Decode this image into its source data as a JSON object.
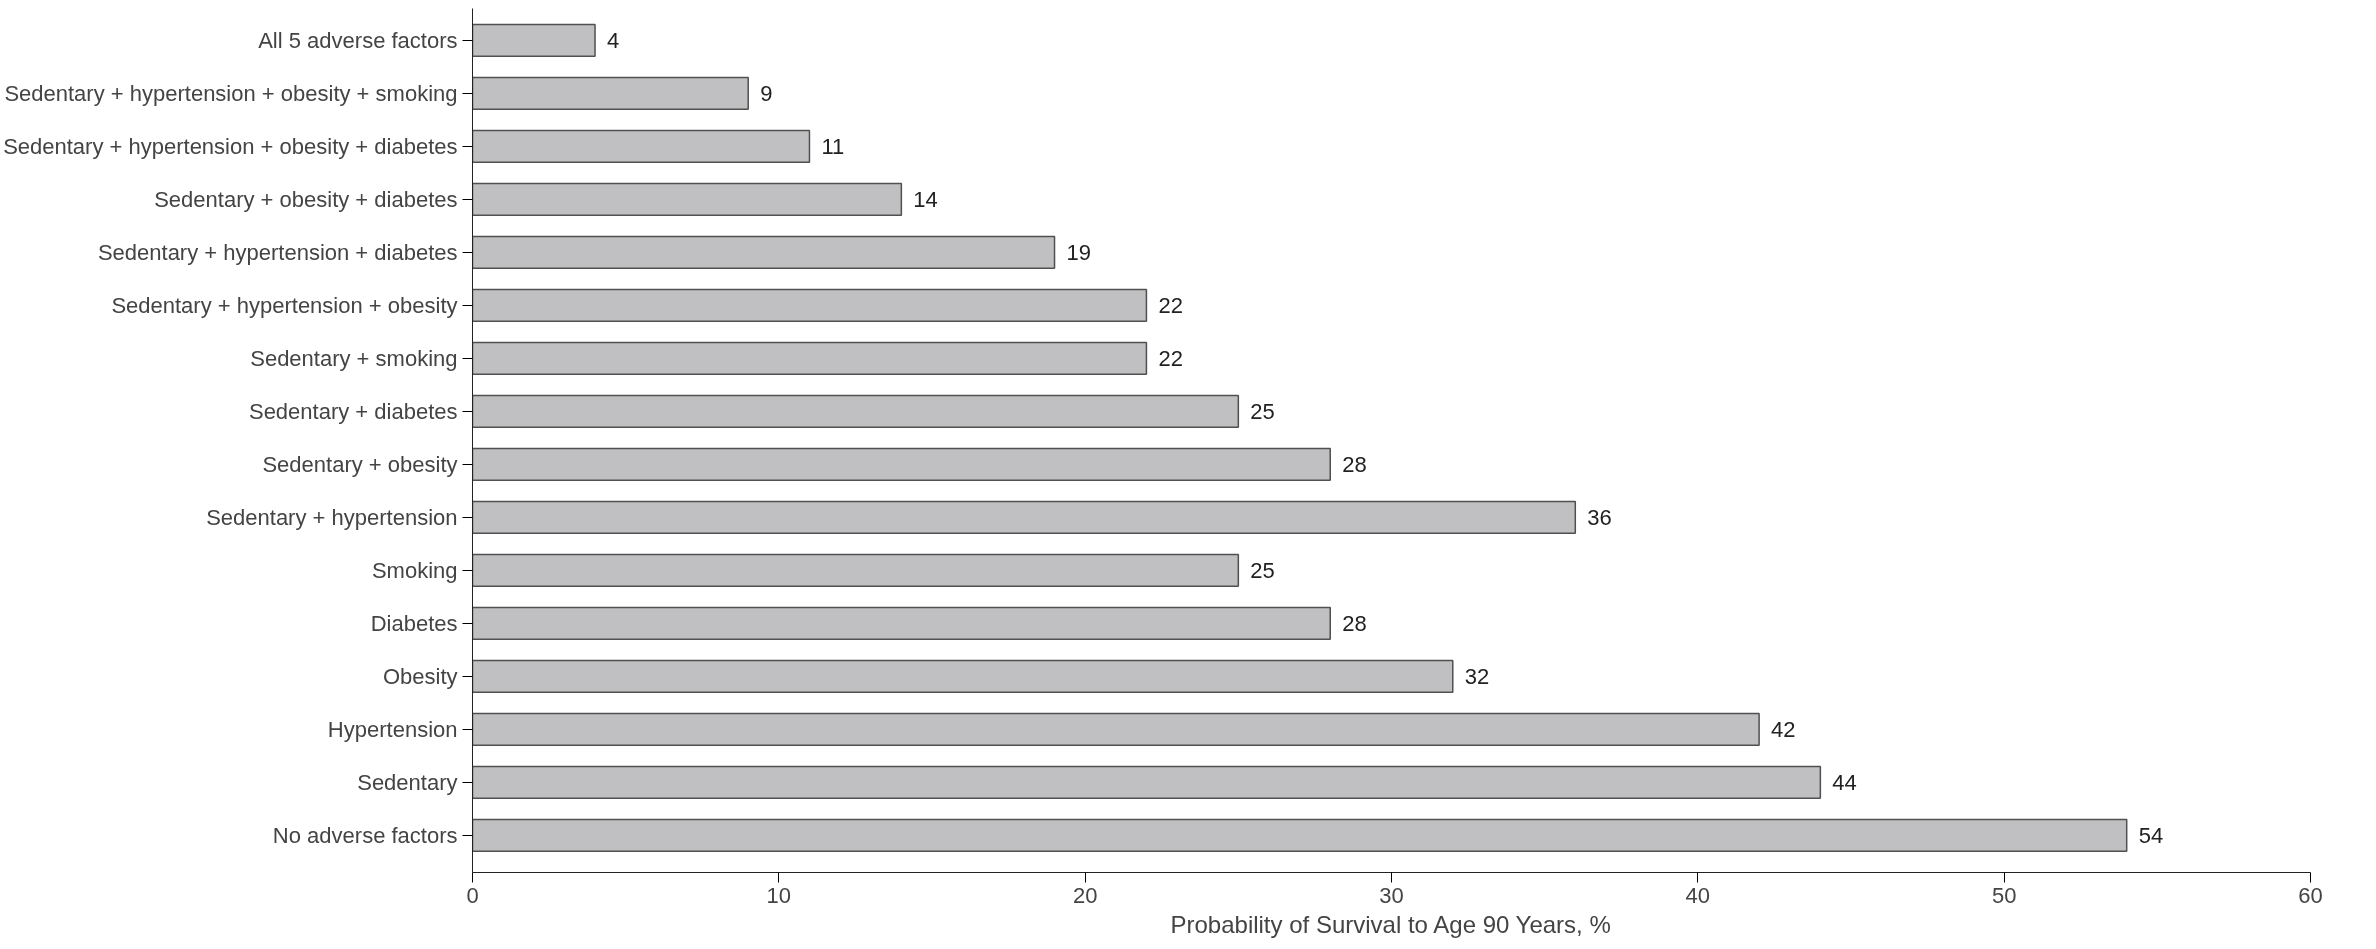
{
  "chart_data": {
    "type": "bar",
    "orientation": "horizontal",
    "categories": [
      "All 5 adverse factors",
      "Sedentary + hypertension + obesity + smoking",
      "Sedentary + hypertension + obesity + diabetes",
      "Sedentary + obesity + diabetes",
      "Sedentary + hypertension + diabetes",
      "Sedentary + hypertension + obesity",
      "Sedentary + smoking",
      "Sedentary + diabetes",
      "Sedentary + obesity",
      "Sedentary + hypertension",
      "Smoking",
      "Diabetes",
      "Obesity",
      "Hypertension",
      "Sedentary",
      "No adverse factors"
    ],
    "values": [
      4,
      9,
      11,
      14,
      19,
      22,
      22,
      25,
      28,
      36,
      25,
      28,
      32,
      42,
      44,
      54
    ],
    "color": "#c0c0c2",
    "xlim": [
      0,
      60
    ],
    "xticks": [
      0,
      10,
      20,
      30,
      40,
      50,
      60
    ],
    "xlabel": "Probability of Survival to Age 90 Years, %",
    "data_labels": true,
    "grid": false
  }
}
